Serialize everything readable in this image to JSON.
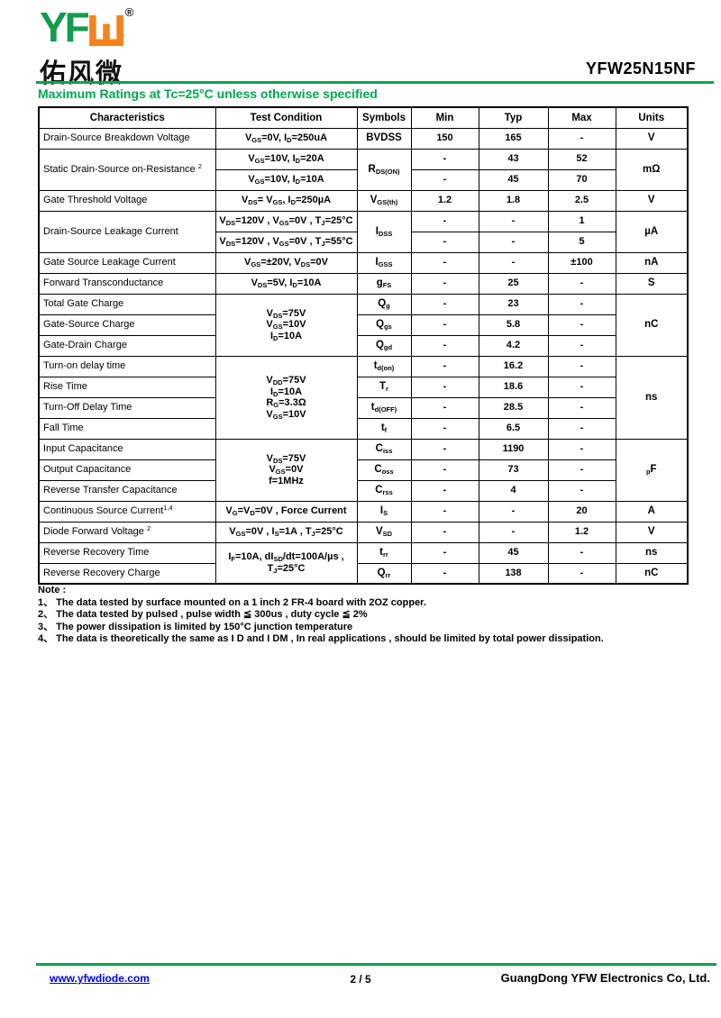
{
  "header": {
    "logo_green_text": "YF",
    "logo_mark_icon": "shan-monogram-icon",
    "registered_mark": "®",
    "logo_chinese": "佑风微",
    "part_number": "YFW25N15NF"
  },
  "colors": {
    "brand_green": "#00A651",
    "brand_orange": "#F5821F",
    "link_blue": "#0000EE"
  },
  "section_title": "Maximum Ratings at Tc=25°C unless otherwise specified",
  "table": {
    "headers": [
      "Characteristics",
      "Test Condition",
      "Symbols",
      "Min",
      "Typ",
      "Max",
      "Units"
    ],
    "rows": [
      {
        "c": "Drain-Source Breakdown Voltage",
        "t": "V<sub>GS</sub>=0V, I<sub>D</sub>=250uA",
        "s": "BVDSS",
        "min": "150",
        "typ": "165",
        "max": "-",
        "u": "V"
      },
      {
        "c": "Static Drain-Source on-Resistance <sup>2</sup>",
        "t": "V<sub>GS</sub>=10V, I<sub>D</sub>=20A",
        "s": "R<sub>DS(ON)</sub>",
        "min": "-",
        "typ": "43",
        "max": "52",
        "u": "mΩ"
      },
      {
        "t": "V<sub>GS</sub>=10V, I<sub>D</sub>=10A",
        "min": "-",
        "typ": "45",
        "max": "70"
      },
      {
        "c": "Gate Threshold Voltage",
        "t": "V<sub>DS</sub>= V<sub>GS</sub>, I<sub>D</sub>=250µA",
        "s": "V<sub>GS(th)</sub>",
        "min": "1.2",
        "typ": "1.8",
        "max": "2.5",
        "u": "V"
      },
      {
        "c": "Drain-Source Leakage Current",
        "t": "V<sub>DS</sub>=120V , V<sub>GS</sub>=0V , T<sub>J</sub>=25°C",
        "s": "I<sub>DSS</sub>",
        "min": "-",
        "typ": "-",
        "max": "1",
        "u": "µA"
      },
      {
        "t": "V<sub>DS</sub>=120V , V<sub>GS</sub>=0V , T<sub>J</sub>=55°C",
        "min": "-",
        "typ": "-",
        "max": "5"
      },
      {
        "c": "Gate  Source Leakage Current",
        "t": "V<sub>GS</sub>=±20V, V<sub>DS</sub>=0V",
        "s": "I<sub>GSS</sub>",
        "min": "-",
        "typ": "-",
        "max": "±100",
        "u": "nA"
      },
      {
        "c": "Forward  Transconductance",
        "t": "V<sub>DS</sub>=5V, I<sub>D</sub>=10A",
        "s": "g<sub>FS</sub>",
        "min": "-",
        "typ": "25",
        "max": "-",
        "u": "S"
      },
      {
        "c": "Total Gate Charge",
        "t": "V<sub>DS</sub>=75V<br>V<sub>GS</sub>=10V<br>I<sub>D</sub>=10A",
        "s": "Q<sub>g</sub>",
        "min": "-",
        "typ": "23",
        "max": "-",
        "u": "nC"
      },
      {
        "c": "Gate-Source Charge",
        "s": "Q<sub>gs</sub>",
        "min": "-",
        "typ": "5.8",
        "max": "-"
      },
      {
        "c": "Gate-Drain  Charge",
        "s": "Q<sub>gd</sub>",
        "min": "-",
        "typ": "4.2",
        "max": "-"
      },
      {
        "c": "Turn-on delay time",
        "t": "V<sub>DD</sub>=75V<br>I<sub>D</sub>=10A<br>R<sub>G</sub>=3.3Ω<br>V<sub>GS</sub>=10V",
        "s": "t<sub>d(on)</sub>",
        "min": "-",
        "typ": "16.2",
        "max": "-",
        "u": "ns"
      },
      {
        "c": "Rise Time",
        "s": "T<sub>r</sub>",
        "min": "-",
        "typ": "18.6",
        "max": "-"
      },
      {
        "c": "Turn-Off  Delay Time",
        "s": "t<sub>d(OFF)</sub>",
        "min": "-",
        "typ": "28.5",
        "max": "-"
      },
      {
        "c": "Fall Time",
        "s": "t<sub>f</sub>",
        "min": "-",
        "typ": "6.5",
        "max": "-"
      },
      {
        "c": "Input Capacitance",
        "t": "V<sub>DS</sub>=75V<br>V<sub>GS</sub>=0V<br>f=1MHz",
        "s": "C<sub>iss</sub>",
        "min": "-",
        "typ": "1190",
        "max": "-",
        "u": "<sub>p</sub>F"
      },
      {
        "c": "Output Capacitance",
        "s": "C<sub>oss</sub>",
        "min": "-",
        "typ": "73",
        "max": "-"
      },
      {
        "c": "Reverse Transfer Capacitance",
        "s": "C<sub>rss</sub>",
        "min": "-",
        "typ": "4",
        "max": "-"
      },
      {
        "c": "Continuous Source Current<sup>1,4</sup>",
        "t": "V<sub>G</sub>=V<sub>D</sub>=0V , Force Current",
        "s": "I<sub>S</sub>",
        "min": "-",
        "typ": "-",
        "max": "20",
        "u": "A"
      },
      {
        "c": "Diode Forward Voltage <sup>2</sup>",
        "t": "V<sub>GS</sub>=0V , I<sub>S</sub>=1A  , T<sub>J</sub>=25°C",
        "s": "V<sub>SD</sub>",
        "min": "-",
        "typ": "-",
        "max": "1.2",
        "u": "V"
      },
      {
        "c": "Reverse Recovery Time",
        "t": "I<sub>F</sub>=10A, dI<sub>SD</sub>/dt=100A/µs ,<br>T<sub>J</sub>=25°C",
        "s": "t<sub>rr</sub>",
        "min": "-",
        "typ": "45",
        "max": "-",
        "u": "ns"
      },
      {
        "c": "Reverse Recovery Charge",
        "s": "Q<sub>rr</sub>",
        "min": "-",
        "typ": "138",
        "max": "-",
        "u": "nC"
      }
    ]
  },
  "notes": {
    "label": "Note :",
    "items": [
      "1、 The data tested by surface mounted on a 1 inch 2 FR-4 board with 2OZ copper.",
      "2、 The data tested by pulsed , pulse width ≦ 300us , duty cycle ≦ 2%",
      "3、 The power dissipation is limited by 150°C junction temperature",
      "4、 The data is theoretically the same as I D and I DM , In real applications , should be limited by total power dissipation."
    ]
  },
  "footer": {
    "website": "www.yfwdiode.com",
    "page": "2 / 5",
    "company": "GuangDong YFW Electronics Co, Ltd."
  }
}
